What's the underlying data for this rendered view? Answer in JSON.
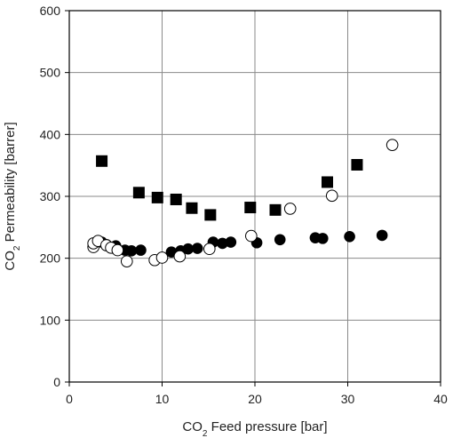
{
  "chart_data": {
    "type": "scatter",
    "xlabel": {
      "pre": "CO",
      "sub": "2",
      "post": " Feed pressure [bar]"
    },
    "ylabel": {
      "pre": "CO",
      "sub": "2",
      "post": " Permeability [barrer]"
    },
    "xlim": [
      0,
      40
    ],
    "ylim": [
      0,
      600
    ],
    "xticks": [
      0,
      10,
      20,
      30,
      40
    ],
    "yticks": [
      0,
      100,
      200,
      300,
      400,
      500,
      600
    ],
    "grid": true,
    "series": [
      {
        "marker": "square-filled",
        "color": "#000000",
        "points": [
          [
            3.5,
            357
          ],
          [
            7.5,
            306
          ],
          [
            9.5,
            298
          ],
          [
            11.5,
            295
          ],
          [
            13.2,
            281
          ],
          [
            15.2,
            270
          ],
          [
            19.5,
            282
          ],
          [
            22.2,
            278
          ],
          [
            27.8,
            323
          ],
          [
            31.0,
            351
          ]
        ]
      },
      {
        "marker": "circle-filled",
        "color": "#000000",
        "points": [
          [
            3.5,
            226
          ],
          [
            4.0,
            222
          ],
          [
            5.0,
            220
          ],
          [
            6.0,
            213
          ],
          [
            6.7,
            212
          ],
          [
            7.7,
            213
          ],
          [
            11.0,
            210
          ],
          [
            12.0,
            212
          ],
          [
            12.8,
            215
          ],
          [
            13.8,
            216
          ],
          [
            15.5,
            226
          ],
          [
            16.5,
            224
          ],
          [
            17.4,
            226
          ],
          [
            20.2,
            225
          ],
          [
            22.7,
            230
          ],
          [
            26.5,
            233
          ],
          [
            27.3,
            232
          ],
          [
            30.2,
            235
          ],
          [
            33.7,
            237
          ]
        ]
      },
      {
        "marker": "circle-open",
        "color": "#000000",
        "points": [
          [
            2.6,
            218
          ],
          [
            2.6,
            224
          ],
          [
            3.1,
            228
          ],
          [
            4.0,
            221
          ],
          [
            4.5,
            217
          ],
          [
            5.2,
            213
          ],
          [
            6.2,
            195
          ],
          [
            9.2,
            197
          ],
          [
            10.0,
            201
          ],
          [
            11.9,
            203
          ],
          [
            15.1,
            215
          ],
          [
            19.6,
            236
          ],
          [
            23.8,
            280
          ],
          [
            28.3,
            301
          ],
          [
            34.8,
            383
          ]
        ]
      }
    ]
  }
}
